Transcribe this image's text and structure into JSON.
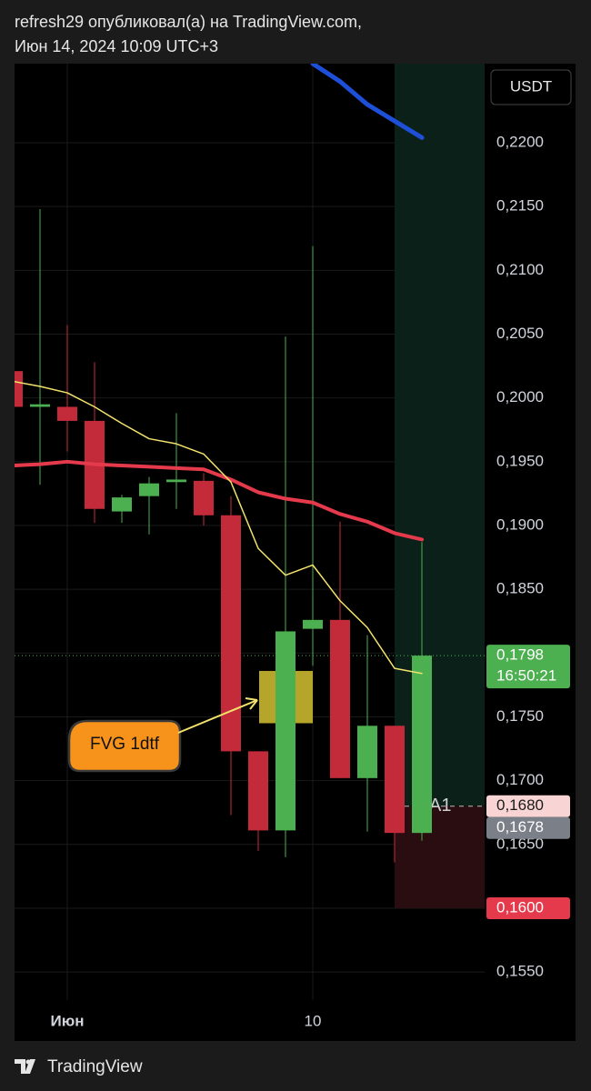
{
  "header": {
    "author_line": "refresh29 опубликовал(а) на TradingView.com,",
    "date_line": "Июн 14, 2024 10:09 UTC+3"
  },
  "chart_data": {
    "type": "candlestick",
    "currency": "USDT",
    "categories": [
      null,
      null,
      "Июн",
      null,
      null,
      null,
      null,
      null,
      null,
      null,
      null,
      "10",
      null,
      null,
      null,
      null
    ],
    "open": [
      0.2021,
      0.1993,
      0.1993,
      0.1982,
      0.1911,
      0.1923,
      0.1934,
      0.1935,
      0.1908,
      0.1723,
      0.1661,
      0.1819,
      0.1826,
      0.1702,
      0.1743,
      0.1659
    ],
    "high": [
      0.2021,
      0.2148,
      0.2057,
      0.2028,
      0.1924,
      0.1938,
      0.1988,
      0.1941,
      0.1923,
      0.1723,
      0.2048,
      0.2119,
      0.1903,
      0.1814,
      0.1743,
      0.1887
    ],
    "low": [
      0.1993,
      0.1932,
      0.1958,
      0.1902,
      0.1902,
      0.1893,
      0.1913,
      0.19,
      0.1673,
      0.1645,
      0.164,
      0.179,
      0.1702,
      0.166,
      0.1636,
      0.1653
    ],
    "close": [
      0.1993,
      0.1995,
      0.1982,
      0.1913,
      0.1922,
      0.1933,
      0.1936,
      0.1908,
      0.1723,
      0.1661,
      0.1817,
      0.1826,
      0.1702,
      0.1743,
      0.1659,
      0.1798
    ],
    "up_color": "#4caf50",
    "down_color": "#c42b3a",
    "lines": [
      {
        "color": "#e53a4c",
        "width": 4,
        "values": [
          0.1947,
          0.1948,
          0.195,
          0.1948,
          0.1947,
          0.1946,
          0.1945,
          0.1944,
          0.1936,
          0.1926,
          0.1921,
          0.1918,
          0.1909,
          0.1903,
          0.1894,
          0.1889
        ]
      },
      {
        "color": "#f3e36c",
        "width": 1.5,
        "values": [
          0.2013,
          0.2009,
          0.2004,
          0.1993,
          0.198,
          0.1968,
          0.1964,
          0.1956,
          0.1934,
          0.1882,
          0.1861,
          0.1869,
          0.1841,
          0.182,
          0.1788,
          0.1784
        ]
      },
      {
        "color": "#1e4fd8",
        "width": 5,
        "values": [
          null,
          null,
          null,
          null,
          null,
          null,
          null,
          null,
          null,
          null,
          null,
          0.2262,
          0.2248,
          0.223,
          0.2217,
          0.2204
        ]
      }
    ],
    "ylim": [
      0.1528,
      0.2262
    ],
    "yticks": [
      {
        "value": 0.22,
        "label": "0,2200"
      },
      {
        "value": 0.215,
        "label": "0,2150"
      },
      {
        "value": 0.21,
        "label": "0,2100"
      },
      {
        "value": 0.205,
        "label": "0,2050"
      },
      {
        "value": 0.2,
        "label": "0,2000"
      },
      {
        "value": 0.195,
        "label": "0,1950"
      },
      {
        "value": 0.19,
        "label": "0,1900"
      },
      {
        "value": 0.185,
        "label": "0,1850"
      },
      {
        "value": 0.18,
        "label": "0,1800"
      },
      {
        "value": 0.175,
        "label": "0,1750"
      },
      {
        "value": 0.17,
        "label": "0,1700"
      },
      {
        "value": 0.165,
        "label": "0,1650"
      },
      {
        "value": 0.16,
        "label": "0,1600"
      },
      {
        "value": 0.155,
        "label": "0,1550"
      }
    ],
    "grid": true,
    "fvg_zone": {
      "top": 0.1786,
      "bottom": 0.1745,
      "start": 9,
      "end": 11,
      "color": "#b5a52a"
    },
    "position": {
      "entry": 0.168,
      "stop": 0.16,
      "start": 14,
      "profit_color": "#0b2019",
      "loss_color": "#2a0d10"
    },
    "level_label": {
      "value": 0.168,
      "text": "A1"
    },
    "annotation": {
      "text": "FVG 1dtf",
      "color": "#f7931a"
    },
    "price_tags": [
      {
        "value": 0.1798,
        "label": "0,1798",
        "countdown": "16:50:21",
        "color": "#4caf50",
        "text_color": "#ffffff"
      },
      {
        "value": 0.168,
        "label": "0,1680",
        "color": "#f9d4d4",
        "text_color": "#1a1a1a"
      },
      {
        "value": 0.1678,
        "label": "0,1678",
        "color": "#7b7f87",
        "text_color": "#ffffff"
      },
      {
        "value": 0.16,
        "label": "0,1600",
        "color": "#e53a4c",
        "text_color": "#ffffff"
      }
    ]
  },
  "footer": {
    "brand": "TradingView"
  }
}
